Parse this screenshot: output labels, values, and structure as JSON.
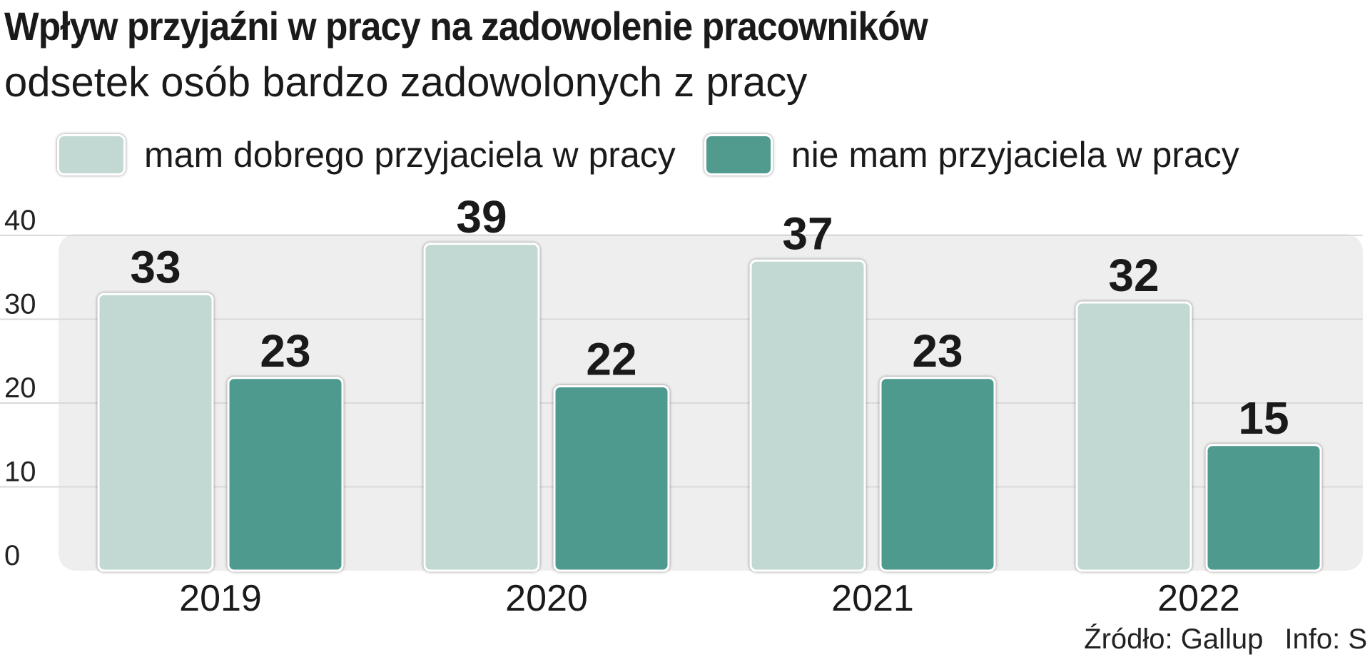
{
  "title": "Wpływ przyjaźni w pracy na zadowolenie pracowników",
  "subtitle": "odsetek osób bardzo zadowolonych z pracy",
  "source": "Źródło: Gallup",
  "info": "Info: S",
  "colors": {
    "series1": "#c2d9d3",
    "series2": "#509a8e",
    "plot_bg": "#eeeeee",
    "grid": "#d9d9d9"
  },
  "chart_data": {
    "type": "bar",
    "title": "Wpływ przyjaźni w pracy na zadowolenie pracowników",
    "subtitle": "odsetek osób bardzo zadowolonych z pracy",
    "categories": [
      "2019",
      "2020",
      "2021",
      "2022"
    ],
    "series": [
      {
        "name": "mam dobrego przyjaciela w pracy",
        "values": [
          33,
          39,
          37,
          32
        ],
        "color": "#c2d9d3"
      },
      {
        "name": "nie mam przyjaciela w pracy",
        "values": [
          23,
          22,
          23,
          15
        ],
        "color": "#509a8e"
      }
    ],
    "xlabel": "",
    "ylabel": "",
    "ylim": [
      0,
      40
    ],
    "yticks": [
      0,
      10,
      20,
      30,
      40
    ],
    "grid": true,
    "legend_position": "top"
  }
}
